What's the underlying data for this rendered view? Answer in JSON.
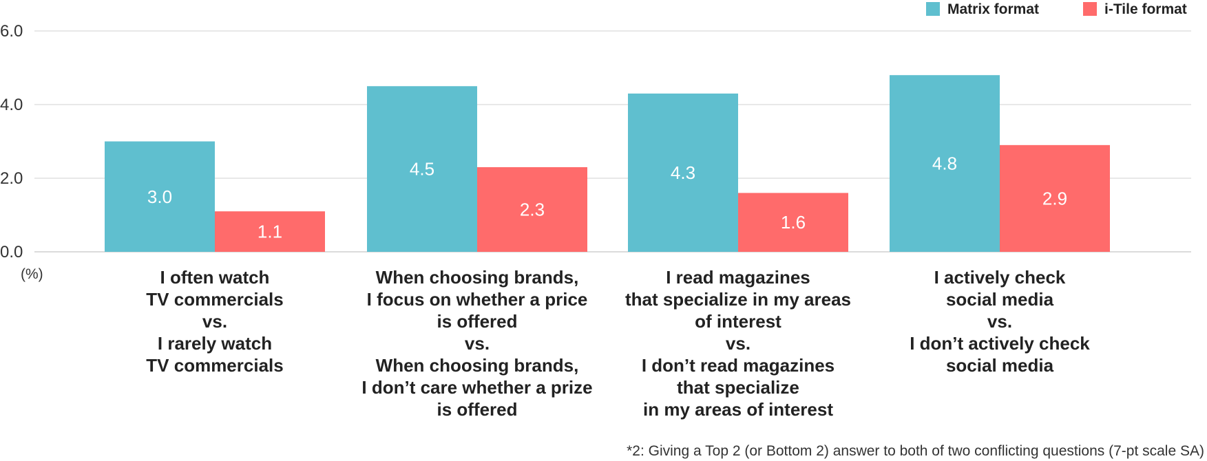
{
  "chart_data": {
    "type": "bar",
    "categories": [
      [
        "I often watch",
        "TV commercials",
        "vs.",
        "I rarely watch",
        "TV commercials"
      ],
      [
        "When choosing brands,",
        "I focus on whether a price",
        "is offered",
        "vs.",
        "When choosing brands,",
        "I don’t care whether a prize",
        "is offered"
      ],
      [
        "I read magazines",
        "that specialize in my areas",
        "of interest",
        "vs.",
        "I don’t read magazines",
        "that specialize",
        "in my areas of interest"
      ],
      [
        "I actively check",
        "social media",
        "vs.",
        "I don’t actively check",
        "social media"
      ]
    ],
    "series": [
      {
        "name": "Matrix format",
        "color": "#5fbfcf",
        "values": [
          3.0,
          4.5,
          4.3,
          4.8
        ],
        "labels": [
          "3.0",
          "4.5",
          "4.3",
          "4.8"
        ]
      },
      {
        "name": "i-Tile format",
        "color": "#ff6b6b",
        "values": [
          1.1,
          2.3,
          1.6,
          2.9
        ],
        "labels": [
          "1.1",
          "2.3",
          "1.6",
          "2.9"
        ]
      }
    ],
    "ylim": [
      0,
      6
    ],
    "yticks": [
      "0.0",
      "2.0",
      "4.0",
      "6.0"
    ],
    "ylabel": "(%)",
    "grid": true,
    "legend_position": "top-right",
    "footnote": "*2: Giving a Top 2 (or Bottom 2) answer to both of two conflicting questions (7-pt scale SA)"
  }
}
